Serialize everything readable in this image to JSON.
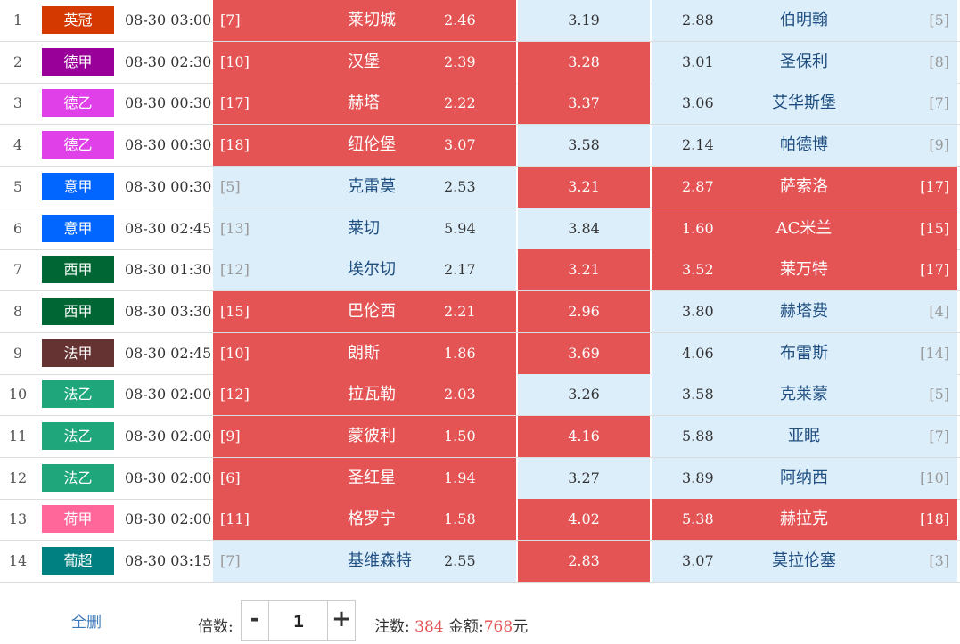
{
  "matches": [
    {
      "index": "1",
      "league": "英冠",
      "league_color": "#d43a00",
      "time": "08-30 03:00",
      "home_rank": "[7]",
      "home": "莱切城",
      "home_odds": "2.46",
      "draw_odds": "3.19",
      "away_odds": "2.88",
      "away": "伯明翰",
      "away_rank": "[5]",
      "highlight": [
        "home"
      ]
    },
    {
      "index": "2",
      "league": "德甲",
      "league_color": "#990099",
      "time": "08-30 02:30",
      "home_rank": "[10]",
      "home": "汉堡",
      "home_odds": "2.39",
      "draw_odds": "3.28",
      "away_odds": "3.01",
      "away": "圣保利",
      "away_rank": "[8]",
      "highlight": [
        "home",
        "draw"
      ]
    },
    {
      "index": "3",
      "league": "德乙",
      "league_color": "#e040e8",
      "time": "08-30 00:30",
      "home_rank": "[17]",
      "home": "赫塔",
      "home_odds": "2.22",
      "draw_odds": "3.37",
      "away_odds": "3.06",
      "away": "艾华斯堡",
      "away_rank": "[7]",
      "highlight": [
        "home",
        "draw"
      ]
    },
    {
      "index": "4",
      "league": "德乙",
      "league_color": "#e040e8",
      "time": "08-30 00:30",
      "home_rank": "[18]",
      "home": "纽伦堡",
      "home_odds": "3.07",
      "draw_odds": "3.58",
      "away_odds": "2.14",
      "away": "帕德博",
      "away_rank": "[9]",
      "highlight": [
        "home"
      ]
    },
    {
      "index": "5",
      "league": "意甲",
      "league_color": "#0066ff",
      "time": "08-30 00:30",
      "home_rank": "[5]",
      "home": "克雷莫",
      "home_odds": "2.53",
      "draw_odds": "3.21",
      "away_odds": "2.87",
      "away": "萨索洛",
      "away_rank": "[17]",
      "highlight": [
        "draw",
        "away"
      ]
    },
    {
      "index": "6",
      "league": "意甲",
      "league_color": "#0066ff",
      "time": "08-30 02:45",
      "home_rank": "[13]",
      "home": "莱切",
      "home_odds": "5.94",
      "draw_odds": "3.84",
      "away_odds": "1.60",
      "away": "AC米兰",
      "away_rank": "[15]",
      "highlight": [
        "away"
      ]
    },
    {
      "index": "7",
      "league": "西甲",
      "league_color": "#006633",
      "time": "08-30 01:30",
      "home_rank": "[12]",
      "home": "埃尔切",
      "home_odds": "2.17",
      "draw_odds": "3.21",
      "away_odds": "3.52",
      "away": "莱万特",
      "away_rank": "[17]",
      "highlight": [
        "draw",
        "away"
      ]
    },
    {
      "index": "8",
      "league": "西甲",
      "league_color": "#006633",
      "time": "08-30 03:30",
      "home_rank": "[15]",
      "home": "巴伦西",
      "home_odds": "2.21",
      "draw_odds": "2.96",
      "away_odds": "3.80",
      "away": "赫塔费",
      "away_rank": "[4]",
      "highlight": [
        "home",
        "draw"
      ]
    },
    {
      "index": "9",
      "league": "法甲",
      "league_color": "#663333",
      "time": "08-30 02:45",
      "home_rank": "[10]",
      "home": "朗斯",
      "home_odds": "1.86",
      "draw_odds": "3.69",
      "away_odds": "4.06",
      "away": "布雷斯",
      "away_rank": "[14]",
      "highlight": [
        "home",
        "draw"
      ]
    },
    {
      "index": "10",
      "league": "法乙",
      "league_color": "#1fa67a",
      "time": "08-30 02:00",
      "home_rank": "[12]",
      "home": "拉瓦勒",
      "home_odds": "2.03",
      "draw_odds": "3.26",
      "away_odds": "3.58",
      "away": "克莱蒙",
      "away_rank": "[5]",
      "highlight": [
        "home"
      ]
    },
    {
      "index": "11",
      "league": "法乙",
      "league_color": "#1fa67a",
      "time": "08-30 02:00",
      "home_rank": "[9]",
      "home": "蒙彼利",
      "home_odds": "1.50",
      "draw_odds": "4.16",
      "away_odds": "5.88",
      "away": "亚眠",
      "away_rank": "[7]",
      "highlight": [
        "home",
        "draw"
      ]
    },
    {
      "index": "12",
      "league": "法乙",
      "league_color": "#1fa67a",
      "time": "08-30 02:00",
      "home_rank": "[6]",
      "home": "圣红星",
      "home_odds": "1.94",
      "draw_odds": "3.27",
      "away_odds": "3.89",
      "away": "阿纳西",
      "away_rank": "[10]",
      "highlight": [
        "home"
      ]
    },
    {
      "index": "13",
      "league": "荷甲",
      "league_color": "#ff6699",
      "time": "08-30 02:00",
      "home_rank": "[11]",
      "home": "格罗宁",
      "home_odds": "1.58",
      "draw_odds": "4.02",
      "away_odds": "5.38",
      "away": "赫拉克",
      "away_rank": "[18]",
      "highlight": [
        "home",
        "draw",
        "away"
      ]
    },
    {
      "index": "14",
      "league": "葡超",
      "league_color": "#008080",
      "time": "08-30 03:15",
      "home_rank": "[7]",
      "home": "基维森特",
      "home_odds": "2.55",
      "draw_odds": "2.83",
      "away_odds": "3.07",
      "away": "莫拉伦塞",
      "away_rank": "[3]",
      "highlight": [
        "draw"
      ]
    }
  ],
  "footer": {
    "clear_label": "全删",
    "multiplier_label": "倍数:",
    "minus_label": "-",
    "multiplier_value": "1",
    "plus_label": "+",
    "bets_label": "注数:",
    "bets_value": "384",
    "amount_label": "金额:",
    "amount_value": "768",
    "currency": "元"
  },
  "colors": {
    "highlight": "#e55454",
    "normal": "#ddeefb",
    "link": "#3d79b8"
  }
}
